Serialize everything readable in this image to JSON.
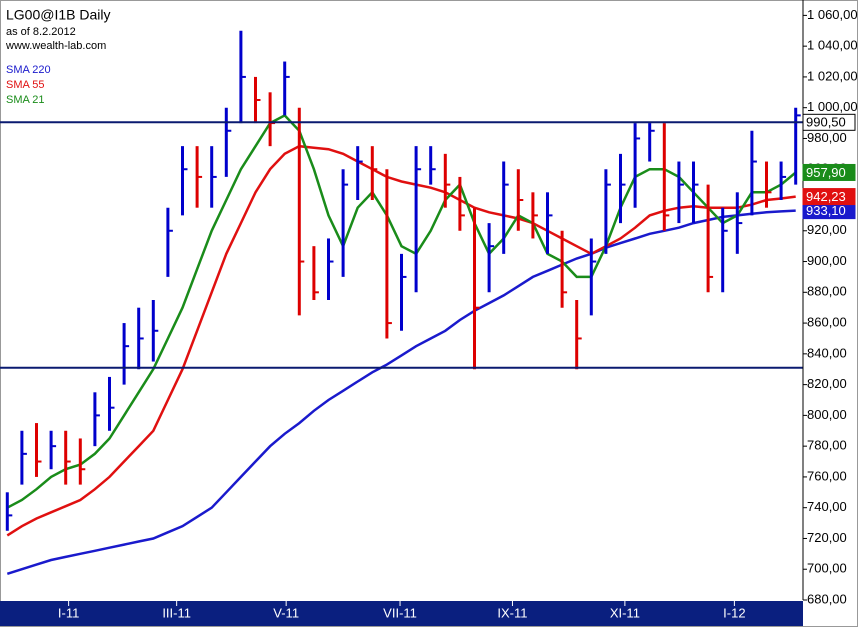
{
  "chart_data": {
    "type": "ohlc",
    "title": "LG00@I1B Daily",
    "subtitle": "as of 8.2.2012",
    "source": "www.wealth-lab.com",
    "up_color": "#0000cc",
    "down_color": "#dd0000",
    "ohlc": {
      "high": [
        750,
        790,
        795,
        790,
        790,
        785,
        815,
        825,
        860,
        870,
        875,
        935,
        975,
        975,
        975,
        1000,
        1050,
        1020,
        1010,
        1030,
        1000,
        910,
        915,
        960,
        975,
        975,
        960,
        905,
        975,
        975,
        970,
        955,
        935,
        925,
        965,
        960,
        945,
        945,
        920,
        875,
        915,
        960,
        970,
        990,
        990,
        990,
        965,
        965,
        950,
        935,
        945,
        985,
        965,
        965,
        1000
      ],
      "low": [
        725,
        755,
        760,
        765,
        755,
        755,
        780,
        790,
        820,
        830,
        835,
        890,
        930,
        935,
        935,
        955,
        990,
        990,
        975,
        995,
        865,
        875,
        875,
        890,
        940,
        940,
        850,
        855,
        880,
        950,
        935,
        920,
        830,
        880,
        905,
        920,
        915,
        905,
        870,
        830,
        865,
        905,
        925,
        935,
        965,
        920,
        925,
        925,
        880,
        880,
        905,
        930,
        935,
        940,
        950
      ],
      "close": [
        735,
        775,
        770,
        780,
        770,
        765,
        800,
        805,
        845,
        850,
        855,
        920,
        960,
        955,
        955,
        985,
        1020,
        1005,
        990,
        1020,
        900,
        880,
        900,
        950,
        965,
        960,
        860,
        890,
        960,
        960,
        950,
        930,
        870,
        910,
        950,
        940,
        930,
        930,
        880,
        850,
        900,
        950,
        950,
        980,
        985,
        930,
        950,
        950,
        890,
        920,
        925,
        965,
        945,
        955,
        995
      ]
    },
    "series": [
      {
        "name": "SMA 220",
        "color": "#1a1acc",
        "values": [
          697,
          700,
          703,
          706,
          708,
          710,
          712,
          714,
          716,
          718,
          720,
          724,
          728,
          734,
          740,
          750,
          760,
          770,
          780,
          788,
          795,
          803,
          810,
          816,
          822,
          828,
          833,
          839,
          845,
          850,
          855,
          862,
          868,
          873,
          878,
          884,
          890,
          894,
          898,
          902,
          905,
          909,
          912,
          915,
          918,
          920,
          922,
          925,
          927,
          929,
          930,
          931,
          932,
          932.6,
          933.1
        ]
      },
      {
        "name": "SMA 55",
        "color": "#e01010",
        "values": [
          722,
          728,
          733,
          737,
          741,
          745,
          752,
          760,
          770,
          780,
          790,
          810,
          830,
          855,
          880,
          905,
          925,
          945,
          960,
          970,
          975,
          974,
          973,
          970,
          965,
          960,
          955,
          952,
          950,
          948,
          945,
          940,
          935,
          932,
          930,
          928,
          925,
          920,
          915,
          910,
          905,
          910,
          915,
          922,
          930,
          933,
          935,
          936,
          935,
          935,
          935,
          937,
          940,
          941,
          942.23
        ]
      },
      {
        "name": "SMA 21",
        "color": "#1a8c1a",
        "values": [
          740,
          745,
          752,
          760,
          765,
          768,
          775,
          785,
          800,
          815,
          830,
          850,
          870,
          895,
          920,
          940,
          960,
          975,
          990,
          995,
          985,
          960,
          930,
          910,
          935,
          945,
          930,
          910,
          905,
          920,
          940,
          950,
          925,
          905,
          915,
          930,
          925,
          905,
          900,
          890,
          890,
          910,
          935,
          955,
          960,
          960,
          955,
          945,
          935,
          925,
          930,
          945,
          945,
          950,
          957.9
        ]
      }
    ],
    "hlines": [
      990.5,
      831
    ],
    "price_tags": [
      {
        "value": 990.5,
        "label": "990,50",
        "color": "#ffffff"
      },
      {
        "value": 933.1,
        "label": "933,10",
        "color": "#1a1acc"
      },
      {
        "value": 957.9,
        "label": "957,90",
        "color": "#1a8c1a"
      },
      {
        "value": 942.23,
        "label": "942,23",
        "color": "#e01010"
      }
    ],
    "ylim": [
      680,
      1070
    ],
    "yticks": [
      {
        "value": 680,
        "label": "680,00"
      },
      {
        "value": 700,
        "label": "700,00"
      },
      {
        "value": 720,
        "label": "720,00"
      },
      {
        "value": 740,
        "label": "740,00"
      },
      {
        "value": 760,
        "label": "760,00"
      },
      {
        "value": 780,
        "label": "780,00"
      },
      {
        "value": 800,
        "label": "800,00"
      },
      {
        "value": 820,
        "label": "820,00"
      },
      {
        "value": 840,
        "label": "840,00"
      },
      {
        "value": 860,
        "label": "860,00"
      },
      {
        "value": 880,
        "label": "880,00"
      },
      {
        "value": 900,
        "label": "900,00"
      },
      {
        "value": 920,
        "label": "920,00"
      },
      {
        "value": 940,
        "label": "940,00"
      },
      {
        "value": 960,
        "label": "960,00"
      },
      {
        "value": 980,
        "label": "980,00"
      },
      {
        "value": 1000,
        "label": "1 000,00"
      },
      {
        "value": 1020,
        "label": "1 020,00"
      },
      {
        "value": 1040,
        "label": "1 040,00"
      },
      {
        "value": 1060,
        "label": "1 060,00"
      }
    ],
    "xticks": [
      {
        "value": 4.2,
        "label": "I-11"
      },
      {
        "value": 11.6,
        "label": "III-11"
      },
      {
        "value": 19.1,
        "label": "V-11"
      },
      {
        "value": 26.9,
        "label": "VII-11"
      },
      {
        "value": 34.6,
        "label": "IX-11"
      },
      {
        "value": 42.3,
        "label": "XI-11"
      },
      {
        "value": 49.8,
        "label": "I-12"
      }
    ]
  }
}
